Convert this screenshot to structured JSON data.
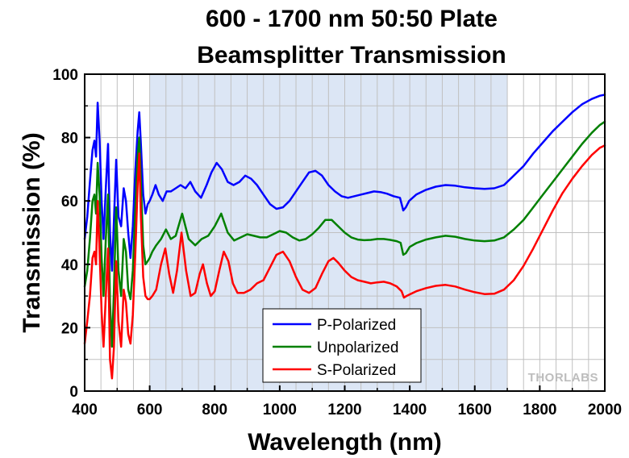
{
  "chart_data": {
    "type": "line",
    "title_line1": "600 - 1700 nm 50:50 Plate",
    "title_line2": "Beamsplitter Transmission",
    "xlabel": "Wavelength (nm)",
    "ylabel": "Transmission (%)",
    "xlim": [
      400,
      2000
    ],
    "ylim": [
      0,
      100
    ],
    "x_ticks": [
      400,
      600,
      800,
      1000,
      1200,
      1400,
      1600,
      1800,
      2000
    ],
    "y_ticks": [
      0,
      20,
      40,
      60,
      80,
      100
    ],
    "grid": true,
    "shaded_band": {
      "from": 600,
      "to": 1700,
      "color": "#dce6f5"
    },
    "legend_position": "bottom-center",
    "watermark": "THORLABS",
    "series": [
      {
        "name": "P-Polarized",
        "color": "#0000ff",
        "points": [
          [
            400,
            48
          ],
          [
            408,
            55
          ],
          [
            416,
            66
          ],
          [
            424,
            76
          ],
          [
            430,
            79
          ],
          [
            435,
            74
          ],
          [
            440,
            91
          ],
          [
            446,
            79
          ],
          [
            452,
            60
          ],
          [
            458,
            48
          ],
          [
            465,
            64
          ],
          [
            472,
            78
          ],
          [
            478,
            50
          ],
          [
            484,
            38
          ],
          [
            490,
            54
          ],
          [
            497,
            73
          ],
          [
            504,
            55
          ],
          [
            512,
            52
          ],
          [
            520,
            64
          ],
          [
            527,
            60
          ],
          [
            534,
            50
          ],
          [
            541,
            42
          ],
          [
            548,
            52
          ],
          [
            556,
            70
          ],
          [
            563,
            82
          ],
          [
            568,
            88
          ],
          [
            573,
            78
          ],
          [
            580,
            62
          ],
          [
            587,
            56
          ],
          [
            594,
            59
          ],
          [
            600,
            60
          ],
          [
            608,
            62
          ],
          [
            618,
            65
          ],
          [
            628,
            62
          ],
          [
            640,
            60
          ],
          [
            652,
            63
          ],
          [
            665,
            63
          ],
          [
            680,
            64
          ],
          [
            695,
            65
          ],
          [
            710,
            64
          ],
          [
            725,
            66
          ],
          [
            740,
            63
          ],
          [
            758,
            61
          ],
          [
            775,
            65
          ],
          [
            790,
            69
          ],
          [
            806,
            72
          ],
          [
            822,
            70
          ],
          [
            840,
            66
          ],
          [
            858,
            65
          ],
          [
            876,
            66
          ],
          [
            894,
            68
          ],
          [
            912,
            67
          ],
          [
            930,
            65
          ],
          [
            950,
            62
          ],
          [
            970,
            59
          ],
          [
            990,
            57.5
          ],
          [
            1010,
            58
          ],
          [
            1030,
            60
          ],
          [
            1050,
            63
          ],
          [
            1070,
            66
          ],
          [
            1090,
            69
          ],
          [
            1110,
            69.5
          ],
          [
            1130,
            68
          ],
          [
            1150,
            65
          ],
          [
            1170,
            63
          ],
          [
            1190,
            61.5
          ],
          [
            1210,
            61
          ],
          [
            1230,
            61.5
          ],
          [
            1250,
            62
          ],
          [
            1270,
            62.5
          ],
          [
            1290,
            63
          ],
          [
            1310,
            62.8
          ],
          [
            1330,
            62.3
          ],
          [
            1350,
            61.5
          ],
          [
            1370,
            61
          ],
          [
            1380,
            57
          ],
          [
            1388,
            58
          ],
          [
            1398,
            60
          ],
          [
            1420,
            62
          ],
          [
            1450,
            63.5
          ],
          [
            1480,
            64.5
          ],
          [
            1510,
            65
          ],
          [
            1540,
            64.8
          ],
          [
            1570,
            64.3
          ],
          [
            1600,
            64
          ],
          [
            1630,
            63.8
          ],
          [
            1660,
            64
          ],
          [
            1690,
            65
          ],
          [
            1720,
            68
          ],
          [
            1750,
            71
          ],
          [
            1780,
            75
          ],
          [
            1810,
            78.5
          ],
          [
            1840,
            82
          ],
          [
            1870,
            85
          ],
          [
            1900,
            88
          ],
          [
            1930,
            90.5
          ],
          [
            1960,
            92.2
          ],
          [
            1985,
            93.2
          ],
          [
            2000,
            93.5
          ]
        ]
      },
      {
        "name": "Unpolarized",
        "color": "#008000",
        "points": [
          [
            400,
            33
          ],
          [
            408,
            38
          ],
          [
            416,
            48
          ],
          [
            424,
            60
          ],
          [
            430,
            62
          ],
          [
            435,
            56
          ],
          [
            440,
            72
          ],
          [
            446,
            62
          ],
          [
            452,
            42
          ],
          [
            458,
            30
          ],
          [
            465,
            48
          ],
          [
            472,
            62
          ],
          [
            478,
            28
          ],
          [
            484,
            14
          ],
          [
            490,
            32
          ],
          [
            497,
            58
          ],
          [
            504,
            38
          ],
          [
            512,
            30
          ],
          [
            520,
            48
          ],
          [
            527,
            44
          ],
          [
            534,
            32
          ],
          [
            541,
            29
          ],
          [
            548,
            38
          ],
          [
            556,
            58
          ],
          [
            563,
            74
          ],
          [
            568,
            80
          ],
          [
            573,
            66
          ],
          [
            580,
            46
          ],
          [
            587,
            40
          ],
          [
            594,
            41
          ],
          [
            600,
            42
          ],
          [
            608,
            44
          ],
          [
            620,
            46
          ],
          [
            635,
            48
          ],
          [
            650,
            51
          ],
          [
            665,
            48
          ],
          [
            680,
            49
          ],
          [
            700,
            56
          ],
          [
            720,
            48
          ],
          [
            740,
            46
          ],
          [
            760,
            48
          ],
          [
            780,
            49
          ],
          [
            800,
            52
          ],
          [
            820,
            56
          ],
          [
            840,
            50
          ],
          [
            860,
            47.5
          ],
          [
            880,
            48.5
          ],
          [
            900,
            49.5
          ],
          [
            920,
            49
          ],
          [
            940,
            48.5
          ],
          [
            960,
            48.5
          ],
          [
            980,
            49.5
          ],
          [
            1000,
            50.5
          ],
          [
            1020,
            50
          ],
          [
            1040,
            48.5
          ],
          [
            1060,
            47.5
          ],
          [
            1080,
            48
          ],
          [
            1100,
            49.5
          ],
          [
            1120,
            51.5
          ],
          [
            1140,
            54
          ],
          [
            1160,
            54
          ],
          [
            1180,
            52
          ],
          [
            1200,
            50
          ],
          [
            1220,
            48.5
          ],
          [
            1240,
            47.8
          ],
          [
            1260,
            47.6
          ],
          [
            1280,
            47.7
          ],
          [
            1300,
            48
          ],
          [
            1320,
            48
          ],
          [
            1340,
            47.7
          ],
          [
            1360,
            47.3
          ],
          [
            1372,
            46.8
          ],
          [
            1380,
            43
          ],
          [
            1388,
            43.5
          ],
          [
            1400,
            45.5
          ],
          [
            1420,
            46.7
          ],
          [
            1450,
            47.8
          ],
          [
            1480,
            48.5
          ],
          [
            1510,
            49
          ],
          [
            1540,
            48.7
          ],
          [
            1570,
            48
          ],
          [
            1600,
            47.5
          ],
          [
            1630,
            47.3
          ],
          [
            1660,
            47.5
          ],
          [
            1690,
            48.5
          ],
          [
            1720,
            51
          ],
          [
            1750,
            54
          ],
          [
            1780,
            58
          ],
          [
            1810,
            62
          ],
          [
            1840,
            66
          ],
          [
            1870,
            70
          ],
          [
            1900,
            74
          ],
          [
            1930,
            78
          ],
          [
            1960,
            81.5
          ],
          [
            1985,
            84
          ],
          [
            2000,
            85
          ]
        ]
      },
      {
        "name": "S-Polarized",
        "color": "#ff0000",
        "points": [
          [
            400,
            15
          ],
          [
            408,
            22
          ],
          [
            416,
            30
          ],
          [
            424,
            42
          ],
          [
            430,
            44
          ],
          [
            435,
            40
          ],
          [
            440,
            60
          ],
          [
            446,
            44
          ],
          [
            452,
            25
          ],
          [
            458,
            14
          ],
          [
            465,
            30
          ],
          [
            472,
            45
          ],
          [
            478,
            10
          ],
          [
            484,
            4
          ],
          [
            490,
            14
          ],
          [
            497,
            41
          ],
          [
            504,
            22
          ],
          [
            512,
            14
          ],
          [
            520,
            32
          ],
          [
            527,
            28
          ],
          [
            534,
            18
          ],
          [
            541,
            15
          ],
          [
            548,
            24
          ],
          [
            556,
            44
          ],
          [
            563,
            65
          ],
          [
            568,
            75
          ],
          [
            573,
            55
          ],
          [
            580,
            36
          ],
          [
            587,
            30
          ],
          [
            594,
            29
          ],
          [
            600,
            29
          ],
          [
            608,
            30
          ],
          [
            620,
            32
          ],
          [
            635,
            40
          ],
          [
            648,
            45
          ],
          [
            660,
            37
          ],
          [
            672,
            31
          ],
          [
            684,
            38
          ],
          [
            698,
            50
          ],
          [
            712,
            38
          ],
          [
            726,
            30
          ],
          [
            740,
            31
          ],
          [
            754,
            37
          ],
          [
            764,
            40
          ],
          [
            776,
            34
          ],
          [
            788,
            30
          ],
          [
            800,
            31.5
          ],
          [
            814,
            38
          ],
          [
            828,
            44
          ],
          [
            842,
            41
          ],
          [
            856,
            34
          ],
          [
            870,
            31
          ],
          [
            890,
            31
          ],
          [
            910,
            32
          ],
          [
            930,
            34
          ],
          [
            950,
            35
          ],
          [
            970,
            39
          ],
          [
            990,
            43
          ],
          [
            1010,
            44
          ],
          [
            1030,
            41
          ],
          [
            1050,
            36
          ],
          [
            1070,
            32
          ],
          [
            1090,
            31
          ],
          [
            1110,
            32.5
          ],
          [
            1130,
            37
          ],
          [
            1150,
            41
          ],
          [
            1165,
            42
          ],
          [
            1180,
            40.5
          ],
          [
            1200,
            38
          ],
          [
            1220,
            36
          ],
          [
            1240,
            35
          ],
          [
            1260,
            34.5
          ],
          [
            1280,
            34
          ],
          [
            1300,
            34.3
          ],
          [
            1320,
            34.5
          ],
          [
            1340,
            34
          ],
          [
            1360,
            33
          ],
          [
            1375,
            31.5
          ],
          [
            1382,
            29.5
          ],
          [
            1390,
            30
          ],
          [
            1400,
            30.5
          ],
          [
            1420,
            31.5
          ],
          [
            1450,
            32.5
          ],
          [
            1480,
            33.2
          ],
          [
            1510,
            33.5
          ],
          [
            1540,
            33
          ],
          [
            1570,
            32
          ],
          [
            1600,
            31.2
          ],
          [
            1630,
            30.6
          ],
          [
            1660,
            30.7
          ],
          [
            1690,
            32
          ],
          [
            1720,
            35
          ],
          [
            1750,
            39.5
          ],
          [
            1780,
            45
          ],
          [
            1810,
            51
          ],
          [
            1840,
            57
          ],
          [
            1870,
            62.5
          ],
          [
            1900,
            67
          ],
          [
            1930,
            71
          ],
          [
            1960,
            74.5
          ],
          [
            1985,
            76.8
          ],
          [
            2000,
            77.5
          ]
        ]
      }
    ]
  }
}
